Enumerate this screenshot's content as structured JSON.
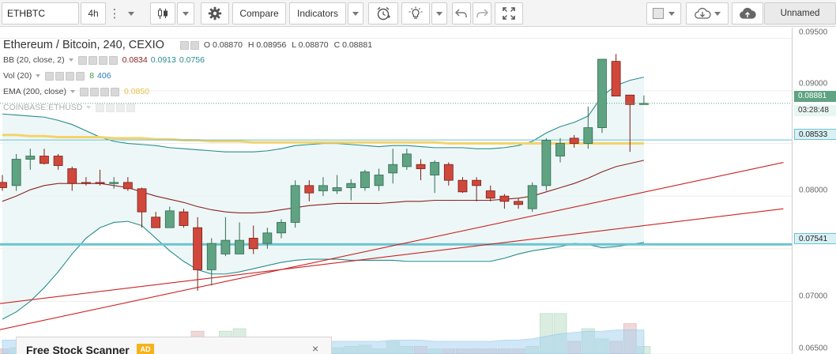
{
  "toolbar": {
    "symbol": "ETHBTC",
    "interval": "4h",
    "compare_label": "Compare",
    "indicators_label": "Indicators",
    "layout_name": "Unnamed",
    "icons": [
      "caret-down-icon",
      "more-dots-icon",
      "candlestick-icon",
      "gear-icon",
      "alarm-clock-icon",
      "lightbulb-icon",
      "undo-icon",
      "redo-icon",
      "fullscreen-icon",
      "color-square-icon",
      "cloud-download-icon",
      "cloud-upload-icon"
    ]
  },
  "legend": {
    "main_title": "Ethereum / Bitcoin, 240, CEXIO",
    "ohlc": {
      "o_label": "O",
      "o": "0.08870",
      "h_label": "H",
      "h": "0.08956",
      "l_label": "L",
      "l": "0.08870",
      "c_label": "C",
      "c": "0.08881"
    },
    "bb": {
      "name": "BB (20, close, 2)",
      "v1": "0.0834",
      "v2": "0.0913",
      "v3": "0.0756"
    },
    "vol": {
      "name": "Vol (20)",
      "v1": "8",
      "v2": "406"
    },
    "ema": {
      "name": "EMA (200, close)",
      "v1": "0.0850"
    },
    "overlay": {
      "name": "COINBASE:ETHUSD"
    }
  },
  "price_axis": {
    "ticks": [
      "0.09500",
      "0.09000",
      "0.08000",
      "0.07000",
      "0.06500"
    ],
    "last_price": "0.08881",
    "countdown": "03:28:48",
    "line1": "0.08533",
    "line2": "0.07541"
  },
  "ad": {
    "title": "Free Stock Scanner",
    "badge": "AD",
    "close": "×"
  },
  "colors": {
    "up": "#5fa383",
    "down": "#d0473b",
    "bb_band": "#2a8c8c",
    "bb_basis": "#8b2323",
    "ema": "#f5d36a",
    "trend": "#cc2222",
    "hline": "#6cc3d1"
  },
  "chart_data": {
    "type": "candlestick",
    "symbol": "Ethereum / Bitcoin",
    "ylim": [
      0.065,
      0.096
    ],
    "candles": [
      {
        "o": 0.0813,
        "h": 0.082,
        "l": 0.0805,
        "c": 0.0808
      },
      {
        "o": 0.081,
        "h": 0.084,
        "l": 0.0805,
        "c": 0.0835
      },
      {
        "o": 0.0835,
        "h": 0.0845,
        "l": 0.0825,
        "c": 0.0838
      },
      {
        "o": 0.0838,
        "h": 0.0845,
        "l": 0.083,
        "c": 0.0831
      },
      {
        "o": 0.0838,
        "h": 0.084,
        "l": 0.0825,
        "c": 0.0829
      },
      {
        "o": 0.0826,
        "h": 0.0828,
        "l": 0.0805,
        "c": 0.0812
      },
      {
        "o": 0.0813,
        "h": 0.0818,
        "l": 0.081,
        "c": 0.0812
      },
      {
        "o": 0.0813,
        "h": 0.0825,
        "l": 0.081,
        "c": 0.0812
      },
      {
        "o": 0.0812,
        "h": 0.0818,
        "l": 0.0807,
        "c": 0.0813
      },
      {
        "o": 0.0813,
        "h": 0.0818,
        "l": 0.0805,
        "c": 0.0807
      },
      {
        "o": 0.0807,
        "h": 0.0808,
        "l": 0.077,
        "c": 0.0785
      },
      {
        "o": 0.078,
        "h": 0.0785,
        "l": 0.077,
        "c": 0.077
      },
      {
        "o": 0.077,
        "h": 0.079,
        "l": 0.0772,
        "c": 0.0786
      },
      {
        "o": 0.0785,
        "h": 0.0788,
        "l": 0.077,
        "c": 0.0772
      },
      {
        "o": 0.077,
        "h": 0.078,
        "l": 0.071,
        "c": 0.073
      },
      {
        "o": 0.073,
        "h": 0.076,
        "l": 0.0715,
        "c": 0.0755
      },
      {
        "o": 0.0745,
        "h": 0.078,
        "l": 0.0743,
        "c": 0.0758
      },
      {
        "o": 0.0745,
        "h": 0.0775,
        "l": 0.0745,
        "c": 0.0758
      },
      {
        "o": 0.076,
        "h": 0.0772,
        "l": 0.0745,
        "c": 0.075
      },
      {
        "o": 0.0755,
        "h": 0.077,
        "l": 0.075,
        "c": 0.0765
      },
      {
        "o": 0.0765,
        "h": 0.0778,
        "l": 0.076,
        "c": 0.0775
      },
      {
        "o": 0.0775,
        "h": 0.0815,
        "l": 0.077,
        "c": 0.081
      },
      {
        "o": 0.081,
        "h": 0.0815,
        "l": 0.0795,
        "c": 0.0803
      },
      {
        "o": 0.0805,
        "h": 0.0818,
        "l": 0.08,
        "c": 0.081
      },
      {
        "o": 0.0805,
        "h": 0.082,
        "l": 0.0802,
        "c": 0.0808
      },
      {
        "o": 0.0808,
        "h": 0.0816,
        "l": 0.0796,
        "c": 0.0812
      },
      {
        "o": 0.0808,
        "h": 0.0825,
        "l": 0.0805,
        "c": 0.0823
      },
      {
        "o": 0.081,
        "h": 0.0826,
        "l": 0.0805,
        "c": 0.082
      },
      {
        "o": 0.0822,
        "h": 0.0845,
        "l": 0.0812,
        "c": 0.083
      },
      {
        "o": 0.0828,
        "h": 0.0845,
        "l": 0.0825,
        "c": 0.084
      },
      {
        "o": 0.083,
        "h": 0.0835,
        "l": 0.0815,
        "c": 0.0826
      },
      {
        "o": 0.082,
        "h": 0.0834,
        "l": 0.0803,
        "c": 0.0832
      },
      {
        "o": 0.083,
        "h": 0.0832,
        "l": 0.081,
        "c": 0.0815
      },
      {
        "o": 0.0815,
        "h": 0.0818,
        "l": 0.0803,
        "c": 0.0804
      },
      {
        "o": 0.0815,
        "h": 0.0818,
        "l": 0.0795,
        "c": 0.081
      },
      {
        "o": 0.0805,
        "h": 0.081,
        "l": 0.0795,
        "c": 0.0798
      },
      {
        "o": 0.08,
        "h": 0.0802,
        "l": 0.0788,
        "c": 0.0795
      },
      {
        "o": 0.0795,
        "h": 0.0798,
        "l": 0.0788,
        "c": 0.0792
      },
      {
        "o": 0.0788,
        "h": 0.0813,
        "l": 0.0785,
        "c": 0.081
      },
      {
        "o": 0.081,
        "h": 0.0855,
        "l": 0.0805,
        "c": 0.0853
      },
      {
        "o": 0.0838,
        "h": 0.0855,
        "l": 0.0832,
        "c": 0.085
      },
      {
        "o": 0.0855,
        "h": 0.0858,
        "l": 0.0846,
        "c": 0.085
      },
      {
        "o": 0.085,
        "h": 0.0885,
        "l": 0.0845,
        "c": 0.0865
      },
      {
        "o": 0.0865,
        "h": 0.093,
        "l": 0.086,
        "c": 0.093
      },
      {
        "o": 0.0928,
        "h": 0.0935,
        "l": 0.0895,
        "c": 0.0895
      },
      {
        "o": 0.0896,
        "h": 0.0895,
        "l": 0.0842,
        "c": 0.0887
      },
      {
        "o": 0.0887,
        "h": 0.08956,
        "l": 0.0887,
        "c": 0.08881
      }
    ],
    "volume": [
      0.2,
      0.25,
      0.3,
      0.35,
      0.25,
      0.6,
      0.2,
      0.2,
      0.2,
      0.2,
      0.35,
      0.2,
      0.2,
      0.5,
      0.9,
      0.4,
      0.9,
      1.0,
      0.6,
      0.6,
      0.3,
      0.45,
      0.25,
      0.3,
      0.25,
      0.3,
      0.35,
      0.2,
      0.5,
      0.3,
      0.3,
      0.2,
      0.2,
      0.2,
      0.2,
      0.2,
      0.2,
      0.2,
      0.3,
      1.6,
      1.6,
      0.5,
      1.0,
      0.6,
      0.5,
      1.2,
      0.3
    ],
    "vol_ma": [
      0.55,
      0.55,
      0.55,
      0.55,
      0.55,
      0.55,
      0.55,
      0.5,
      0.5,
      0.5,
      0.5,
      0.5,
      0.45,
      0.45,
      0.5,
      0.55,
      0.55,
      0.55,
      0.55,
      0.55,
      0.55,
      0.5,
      0.5,
      0.5,
      0.5,
      0.5,
      0.5,
      0.5,
      0.55,
      0.55,
      0.55,
      0.5,
      0.5,
      0.5,
      0.5,
      0.5,
      0.55,
      0.55,
      0.6,
      0.7,
      0.8,
      0.85,
      0.9,
      0.9,
      0.95,
      0.95,
      0.95
    ],
    "bb_upper": [
      0.0878,
      0.0877,
      0.0876,
      0.0875,
      0.0872,
      0.0868,
      0.0862,
      0.0856,
      0.0852,
      0.085,
      0.0849,
      0.0848,
      0.0846,
      0.0845,
      0.0844,
      0.0843,
      0.0842,
      0.0842,
      0.0842,
      0.0843,
      0.0845,
      0.0848,
      0.0849,
      0.085,
      0.085,
      0.0849,
      0.0848,
      0.0847,
      0.0848,
      0.0848,
      0.0847,
      0.0846,
      0.0846,
      0.0846,
      0.0845,
      0.0845,
      0.0846,
      0.0848,
      0.0852,
      0.086,
      0.0866,
      0.087,
      0.0876,
      0.0895,
      0.0905,
      0.091,
      0.0913
    ],
    "bb_basis": [
      0.0795,
      0.08,
      0.0806,
      0.081,
      0.0812,
      0.0812,
      0.0812,
      0.0812,
      0.081,
      0.0808,
      0.0804,
      0.08,
      0.0797,
      0.0794,
      0.079,
      0.0787,
      0.0785,
      0.0784,
      0.0784,
      0.0785,
      0.0787,
      0.0789,
      0.0791,
      0.0792,
      0.0793,
      0.0793,
      0.0793,
      0.0793,
      0.0794,
      0.0795,
      0.0795,
      0.0796,
      0.0796,
      0.0796,
      0.0796,
      0.0796,
      0.0797,
      0.0798,
      0.08,
      0.0804,
      0.0808,
      0.0812,
      0.0817,
      0.0823,
      0.0828,
      0.0831,
      0.0834
    ],
    "bb_lower": [
      0.0683,
      0.069,
      0.07,
      0.0713,
      0.0728,
      0.0745,
      0.076,
      0.077,
      0.0775,
      0.0776,
      0.0772,
      0.076,
      0.0748,
      0.0738,
      0.073,
      0.0726,
      0.0726,
      0.0728,
      0.0731,
      0.0734,
      0.0737,
      0.0739,
      0.074,
      0.074,
      0.074,
      0.0739,
      0.0739,
      0.0739,
      0.0739,
      0.0738,
      0.0738,
      0.0738,
      0.0738,
      0.0738,
      0.0738,
      0.0738,
      0.0741,
      0.0745,
      0.0748,
      0.075,
      0.0752,
      0.0755,
      0.0754,
      0.0751,
      0.0752,
      0.0754,
      0.0756
    ],
    "ema": [
      0.0858,
      0.0858,
      0.0857,
      0.0857,
      0.0856,
      0.0856,
      0.0856,
      0.0856,
      0.0855,
      0.0855,
      0.0855,
      0.0854,
      0.0854,
      0.0853,
      0.0853,
      0.0852,
      0.0852,
      0.0852,
      0.0851,
      0.0851,
      0.0851,
      0.0851,
      0.0851,
      0.0851,
      0.0851,
      0.0851,
      0.0851,
      0.0851,
      0.0851,
      0.0851,
      0.0851,
      0.0851,
      0.085,
      0.085,
      0.085,
      0.085,
      0.085,
      0.085,
      0.085,
      0.085,
      0.085,
      0.085,
      0.085,
      0.085,
      0.085,
      0.085,
      0.085
    ],
    "hlines": [
      0.08533,
      0.07541
    ],
    "last_price": 0.08881,
    "trendlines": [
      {
        "from": [
          -2,
          0.0668
        ],
        "to": [
          56,
          0.0832
        ]
      },
      {
        "from": [
          -2,
          0.0695
        ],
        "to": [
          56,
          0.0788
        ]
      }
    ]
  }
}
